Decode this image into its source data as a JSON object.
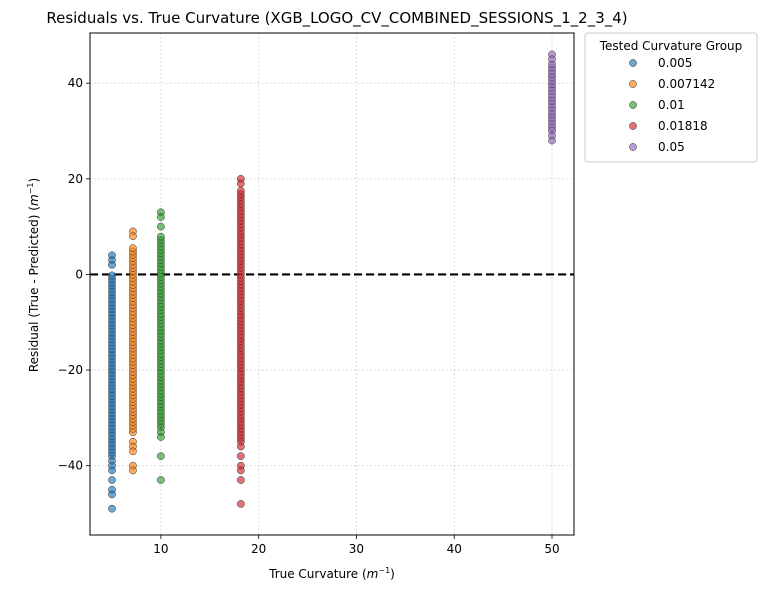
{
  "chart_data": {
    "type": "scatter",
    "title": "Residuals vs. True Curvature (XGB_LOGO_CV_COMBINED_SESSIONS_1_2_3_4)",
    "xlabel_main": "True Curvature (",
    "xlabel_unit": "m",
    "xlabel_sup": "−1",
    "xlabel_end": ")",
    "ylabel_main": "Residual (True - Predicted) (",
    "ylabel_unit": "m",
    "ylabel_sup": "−1",
    "ylabel_end": ")",
    "xlim": [
      2.75,
      52.25
    ],
    "ylim": [
      -54.5,
      50.5
    ],
    "xticks": [
      10,
      20,
      30,
      40,
      50
    ],
    "yticks": [
      -40,
      -20,
      0,
      20,
      40
    ],
    "grid": true,
    "reference_line": {
      "y": 0,
      "style": "dashed",
      "color": "#000000"
    },
    "legend": {
      "title": "Tested Curvature Group",
      "placement": "outside-top-right"
    },
    "series": [
      {
        "name": "0.005",
        "x": 5,
        "color": "#1f77b4",
        "y_range": [
          -38,
          0
        ],
        "outliers": [
          4,
          3,
          2,
          -39,
          -40,
          -41,
          -43,
          -45,
          -46,
          -49
        ]
      },
      {
        "name": "0.007142",
        "x": 7.142,
        "color": "#ff7f0e",
        "y_range": [
          -33,
          6
        ],
        "outliers": [
          9,
          8,
          -35,
          -36,
          -37,
          -40,
          -41
        ]
      },
      {
        "name": "0.01",
        "x": 10,
        "color": "#2ca02c",
        "y_range": [
          -32,
          8
        ],
        "outliers": [
          13,
          12,
          10,
          -33,
          -34,
          -38,
          -43
        ]
      },
      {
        "name": "0.01818",
        "x": 18.18,
        "color": "#d62728",
        "y_range": [
          -35,
          18
        ],
        "outliers": [
          20,
          19,
          -36,
          -38,
          -40,
          -41,
          -43,
          -48
        ]
      },
      {
        "name": "0.05",
        "x": 50,
        "color": "#9467bd",
        "y_range": [
          30,
          44
        ],
        "outliers": [
          46,
          45,
          29,
          28
        ]
      }
    ]
  }
}
